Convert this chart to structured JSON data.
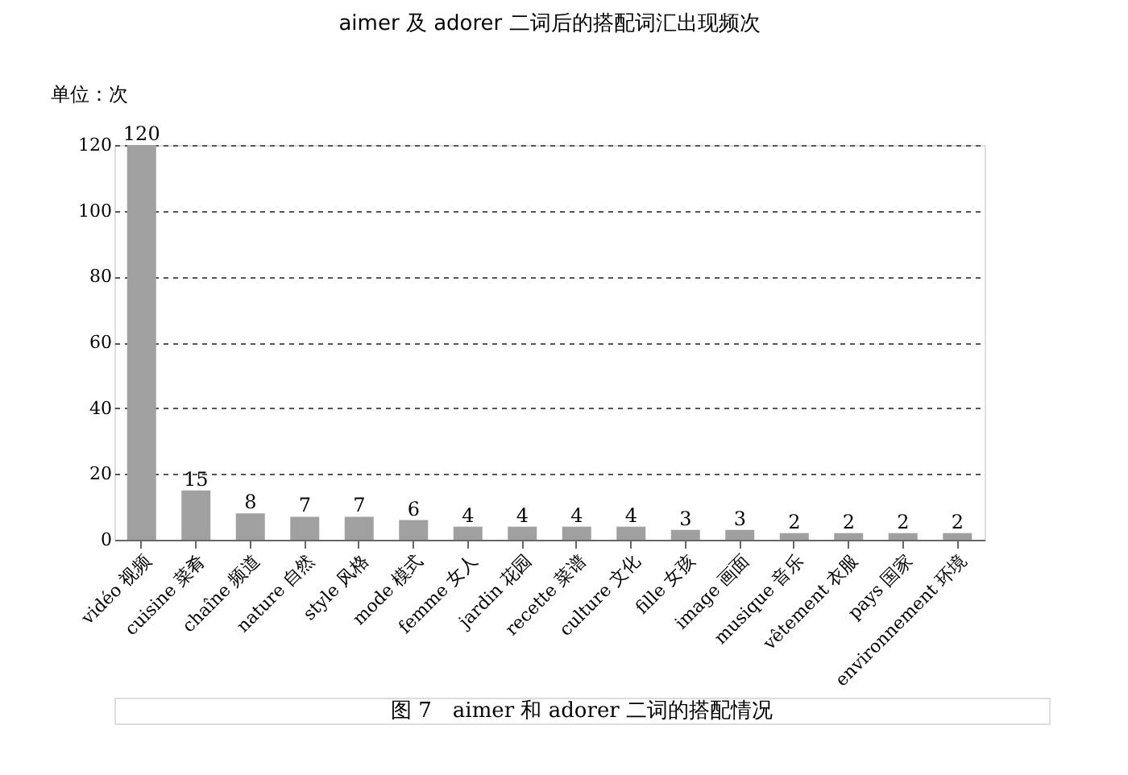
{
  "chart_data": {
    "type": "bar",
    "title": "aimer 及 adorer 二词后的搭配词汇出现频次",
    "ylabel": "单位：次",
    "categories": [
      "vidéo 视频",
      "cuisine 菜肴",
      "chaîne 频道",
      "nature 自然",
      "style 风格",
      "mode 模式",
      "femme 女人",
      "jardin 花园",
      "recette 菜谱",
      "culture 文化",
      "fille 女孩",
      "image 画面",
      "musique 音乐",
      "vêtement 衣服",
      "pays 国家",
      "environnement 环境"
    ],
    "values": [
      120,
      15,
      8,
      7,
      7,
      6,
      4,
      4,
      4,
      4,
      3,
      3,
      2,
      2,
      2,
      2
    ],
    "color": "#a0a0a0",
    "ylim": [
      0,
      120
    ],
    "yticks": [
      0,
      20,
      40,
      60,
      80,
      100,
      120
    ],
    "grid": "y",
    "data_labels": true,
    "annotations": [
      "图 7　aimer 和 adorer 二词的搭配情况"
    ]
  }
}
